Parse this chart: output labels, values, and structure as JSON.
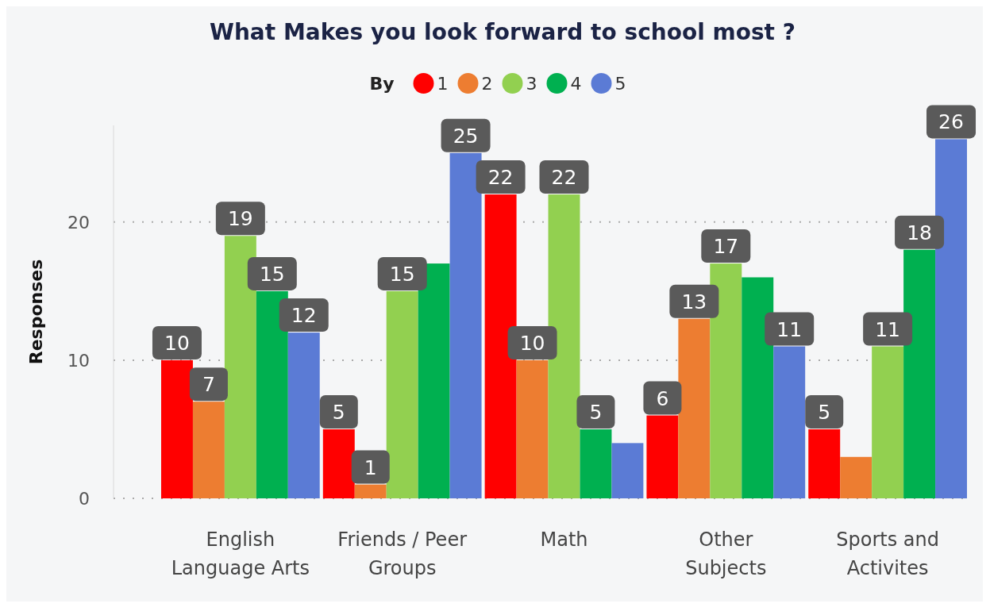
{
  "chart_data": {
    "type": "bar",
    "title": "What Makes you look forward to school most ?",
    "ylabel": "Responses",
    "legend_title": "By",
    "legend": "top",
    "grid": "y",
    "ylim": [
      0,
      27
    ],
    "yticks": [
      0,
      10,
      20
    ],
    "categories": [
      "English\nLanguage Arts",
      "Friends / Peer\nGroups",
      "Math",
      "Other\nSubjects",
      "Sports and\nActivites"
    ],
    "series": [
      {
        "name": "1",
        "color": "#ff0000",
        "values": [
          10,
          5,
          22,
          6,
          5
        ],
        "value_labels": [
          "10",
          "5",
          "22",
          "6",
          "5"
        ]
      },
      {
        "name": "2",
        "color": "#ed7d31",
        "values": [
          7,
          1,
          10,
          13,
          3
        ],
        "value_labels": [
          "7",
          "1",
          "10",
          "13",
          null
        ]
      },
      {
        "name": "3",
        "color": "#92d050",
        "values": [
          19,
          15,
          22,
          17,
          11
        ],
        "value_labels": [
          "19",
          "15",
          "22",
          "17",
          "11"
        ]
      },
      {
        "name": "4",
        "color": "#00b050",
        "values": [
          15,
          17,
          5,
          16,
          18
        ],
        "value_labels": [
          "15",
          null,
          "5",
          null,
          "18"
        ]
      },
      {
        "name": "5",
        "color": "#5b7bd5",
        "values": [
          12,
          25,
          4,
          11,
          26
        ],
        "value_labels": [
          "12",
          "25",
          null,
          "11",
          "26"
        ]
      }
    ]
  }
}
